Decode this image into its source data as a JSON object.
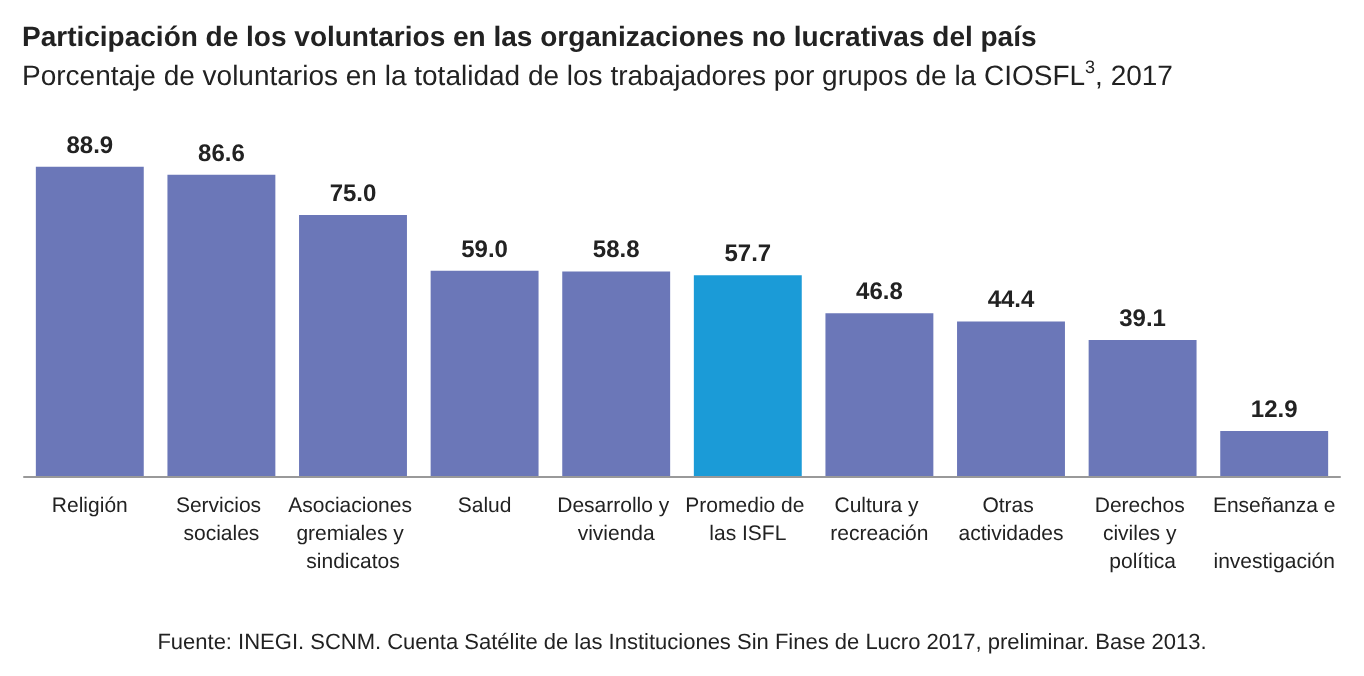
{
  "chart_data": {
    "type": "bar",
    "title": "Participación de los voluntarios en las organizaciones no lucrativas del país",
    "subtitle": "Porcentaje de voluntarios en la totalidad de los trabajadores por grupos de la CIOSFL$^{3}$, 2017",
    "categories": [
      "Religión",
      "Servicios sociales",
      "Asociaciones gremiales y sindicatos",
      "Salud",
      "Desarrollo y vivienda",
      "Promedio de las ISFL",
      "Cultura y recreación",
      "Otras actividades",
      "Derechos civiles y política",
      "Enseñanza e investigación"
    ],
    "values": [
      88.9,
      86.6,
      75.0,
      59.0,
      58.8,
      57.7,
      46.8,
      44.4,
      39.1,
      12.9
    ],
    "value_labels": [
      "88.9",
      "86.6",
      "75.0",
      "59.0",
      "58.8",
      "57.7",
      "46.8",
      "44.4",
      "39.1",
      "12.9"
    ],
    "colors": [
      "#6b77b8",
      "#6b77b8",
      "#6b77b8",
      "#6b77b8",
      "#6b77b8",
      "#1b9bd7",
      "#6b77b8",
      "#6b77b8",
      "#6b77b8",
      "#6b77b8"
    ],
    "annotations": [
      "Fuente: INEGI. SCNM. Cuenta Satélite de las Instituciones Sin Fines de Lucro 2017, preliminar. Base 2013."
    ]
  }
}
